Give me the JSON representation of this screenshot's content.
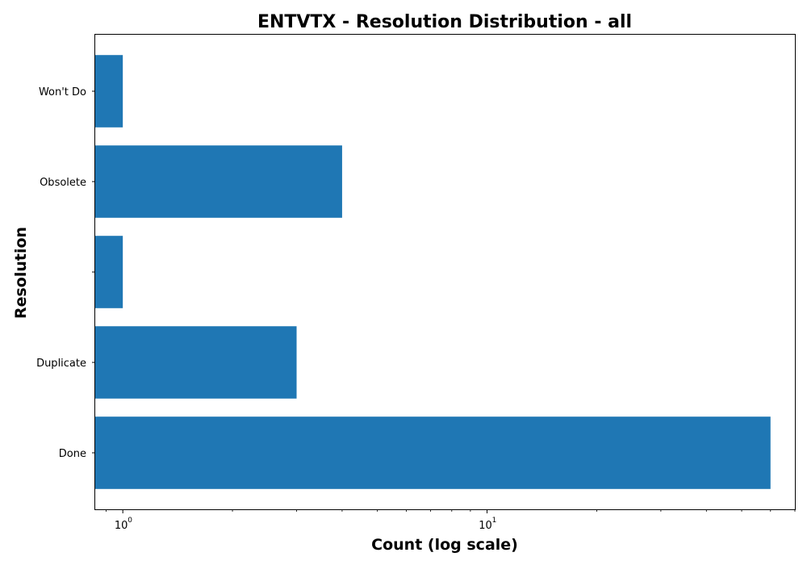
{
  "chart_data": {
    "type": "bar",
    "orientation": "horizontal",
    "title": "ENTVTX - Resolution Distribution - all",
    "xlabel": "Count (log scale)",
    "ylabel": "Resolution",
    "x_scale": "log",
    "xlim": [
      0.84,
      70
    ],
    "x_major_ticks": [
      {
        "value": 1,
        "base": "10",
        "exp": "0"
      },
      {
        "value": 10,
        "base": "10",
        "exp": "1"
      }
    ],
    "categories": [
      "Done",
      "Duplicate",
      "",
      "Obsolete",
      "Won't Do"
    ],
    "values": [
      60,
      3,
      1,
      4,
      1
    ],
    "bar_color": "#1f77b4",
    "grid": false,
    "legend": "none"
  }
}
